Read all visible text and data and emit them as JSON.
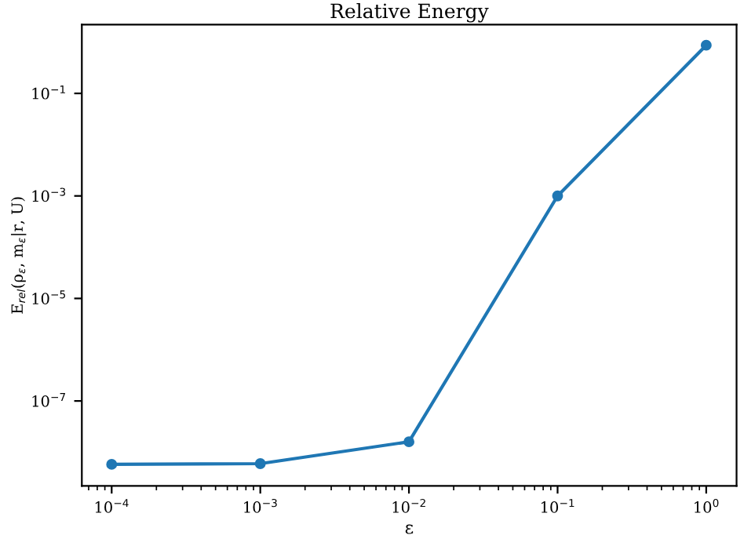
{
  "chart_data": {
    "type": "line",
    "title": "Relative Energy",
    "xlabel": "ε",
    "ylabel": "E$_{rel}$(ρ$_{ε}$, m$_{ε}$|r, U)",
    "x": [
      0.0001,
      0.001,
      0.01,
      0.1,
      1
    ],
    "series": [
      {
        "color": "#1f77b4",
        "values": [
          5.8e-09,
          6e-09,
          1.6e-08,
          0.001,
          0.87
        ]
      }
    ],
    "log": "xy",
    "xlim": [
      6.3e-05,
      1.6
    ],
    "ylim": [
      2.2e-09,
      2.2
    ],
    "xticks": [
      {
        "value": 0.0001,
        "label": "10$^{−4}$"
      },
      {
        "value": 0.001,
        "label": "10$^{−3}$"
      },
      {
        "value": 0.01,
        "label": "10$^{−2}$"
      },
      {
        "value": 0.1,
        "label": "10$^{−1}$"
      },
      {
        "value": 1,
        "label": "10$^{0}$"
      }
    ],
    "yticks": [
      {
        "value": 1e-07,
        "label": "10$^{−7}$"
      },
      {
        "value": 1e-05,
        "label": "10$^{−5}$"
      },
      {
        "value": 0.001,
        "label": "10$^{−3}$"
      },
      {
        "value": 0.1,
        "label": "10$^{−1}$"
      }
    ],
    "grid": false,
    "legend": false,
    "marker": "circle",
    "line_style": "solid"
  }
}
